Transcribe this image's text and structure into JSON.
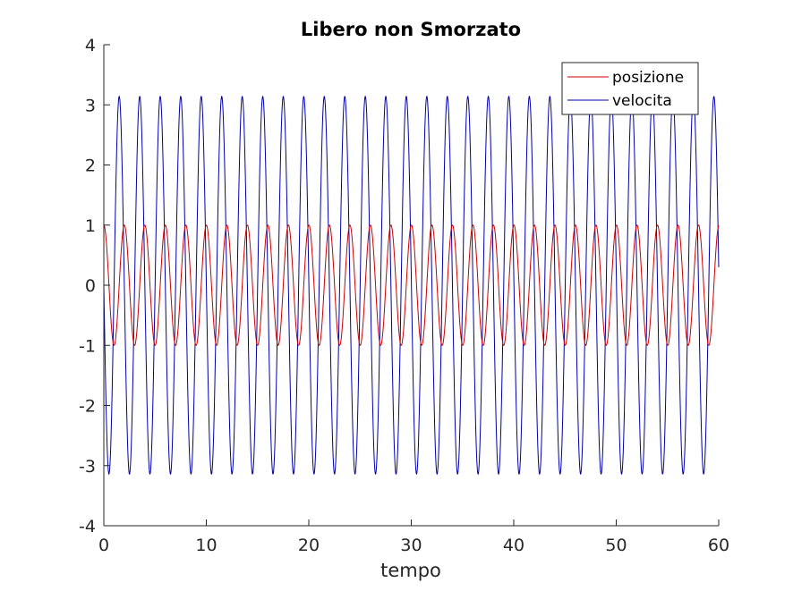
{
  "chart_data": {
    "type": "line",
    "title": "Libero non Smorzato",
    "xlabel": "tempo",
    "ylabel": "",
    "xlim": [
      0,
      60
    ],
    "ylim": [
      -4,
      4
    ],
    "xticks": [
      0,
      10,
      20,
      30,
      40,
      50,
      60
    ],
    "xtick_labels": [
      "0",
      "10",
      "20",
      "30",
      "40",
      "50",
      "60"
    ],
    "yticks": [
      -4,
      -3,
      -2,
      -1,
      0,
      1,
      2,
      3,
      4
    ],
    "ytick_labels": [
      "-4",
      "-3",
      "-2",
      "-1",
      "0",
      "1",
      "2",
      "3",
      "4"
    ],
    "grid": false,
    "legend_position": "top-right",
    "series": [
      {
        "name": "posizione",
        "color": "#cc0000",
        "function": "cos",
        "amplitude": 1,
        "angular_frequency": 3.14,
        "x_range": [
          0,
          60
        ]
      },
      {
        "name": "velocita",
        "color": "#0000aa",
        "function": "-sin",
        "amplitude": 3.14,
        "angular_frequency": 3.14,
        "x_range": [
          0,
          60
        ]
      }
    ]
  }
}
